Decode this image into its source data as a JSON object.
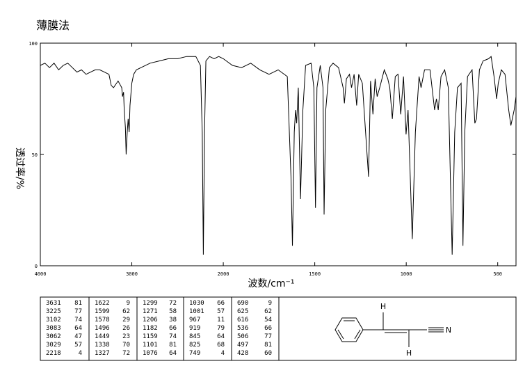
{
  "chart_data": {
    "type": "line",
    "title": "薄膜法",
    "x_label": "波数/cm⁻¹",
    "y_label": "透过率/%",
    "xlim": [
      4000,
      400
    ],
    "ylim": [
      0,
      100
    ],
    "xticks": [
      4000,
      3000,
      2000,
      1500,
      1000,
      500
    ],
    "yticks": [
      0,
      50,
      100
    ],
    "color": "#000000",
    "x": [
      4000,
      3950,
      3900,
      3850,
      3800,
      3750,
      3700,
      3650,
      3600,
      3550,
      3500,
      3450,
      3400,
      3350,
      3300,
      3250,
      3225,
      3200,
      3150,
      3110,
      3102,
      3090,
      3083,
      3070,
      3062,
      3050,
      3040,
      3029,
      3020,
      3000,
      2980,
      2950,
      2900,
      2800,
      2700,
      2600,
      2500,
      2400,
      2300,
      2250,
      2230,
      2218,
      2205,
      2190,
      2150,
      2100,
      2050,
      2000,
      1950,
      1900,
      1850,
      1800,
      1750,
      1700,
      1650,
      1630,
      1622,
      1612,
      1605,
      1599,
      1590,
      1578,
      1565,
      1550,
      1520,
      1505,
      1496,
      1488,
      1470,
      1455,
      1449,
      1440,
      1420,
      1400,
      1370,
      1345,
      1338,
      1327,
      1310,
      1299,
      1285,
      1271,
      1260,
      1240,
      1206,
      1195,
      1182,
      1170,
      1159,
      1145,
      1120,
      1101,
      1090,
      1076,
      1060,
      1045,
      1030,
      1015,
      1001,
      990,
      967,
      950,
      930,
      919,
      900,
      870,
      845,
      835,
      825,
      810,
      790,
      770,
      749,
      735,
      720,
      700,
      690,
      680,
      665,
      640,
      625,
      616,
      600,
      580,
      550,
      536,
      520,
      506,
      497,
      480,
      460,
      440,
      428,
      410,
      400
    ],
    "values": [
      90,
      91,
      89,
      91,
      88,
      90,
      91,
      89,
      87,
      88,
      86,
      87,
      88,
      88,
      87,
      86,
      81,
      80,
      83,
      80,
      76,
      78,
      70,
      62,
      50,
      60,
      66,
      60,
      72,
      82,
      86,
      88,
      89,
      91,
      92,
      93,
      93,
      94,
      94,
      90,
      60,
      5,
      60,
      92,
      94,
      93,
      94,
      93,
      90,
      89,
      91,
      88,
      86,
      88,
      85,
      40,
      9,
      60,
      70,
      64,
      80,
      30,
      70,
      90,
      91,
      80,
      26,
      80,
      90,
      80,
      23,
      70,
      89,
      91,
      89,
      80,
      73,
      84,
      86,
      80,
      86,
      72,
      86,
      82,
      40,
      83,
      68,
      84,
      76,
      80,
      88,
      84,
      80,
      66,
      85,
      86,
      68,
      85,
      59,
      70,
      12,
      60,
      85,
      80,
      88,
      88,
      70,
      75,
      70,
      85,
      88,
      80,
      5,
      60,
      80,
      82,
      9,
      60,
      85,
      88,
      64,
      66,
      88,
      92,
      93,
      94,
      85,
      75,
      82,
      88,
      86,
      70,
      63,
      70,
      76
    ]
  },
  "peak_table": {
    "groups": [
      [
        [
          3631,
          81
        ],
        [
          3225,
          77
        ],
        [
          3102,
          74
        ],
        [
          3083,
          64
        ],
        [
          3062,
          47
        ],
        [
          3029,
          57
        ],
        [
          2218,
          4
        ]
      ],
      [
        [
          1622,
          9
        ],
        [
          1599,
          62
        ],
        [
          1578,
          29
        ],
        [
          1496,
          26
        ],
        [
          1449,
          23
        ],
        [
          1338,
          70
        ],
        [
          1327,
          72
        ]
      ],
      [
        [
          1299,
          72
        ],
        [
          1271,
          58
        ],
        [
          1206,
          38
        ],
        [
          1182,
          66
        ],
        [
          1159,
          74
        ],
        [
          1101,
          81
        ],
        [
          1076,
          64
        ]
      ],
      [
        [
          1030,
          66
        ],
        [
          1001,
          57
        ],
        [
          967,
          11
        ],
        [
          919,
          79
        ],
        [
          845,
          64
        ],
        [
          825,
          68
        ],
        [
          749,
          4
        ]
      ],
      [
        [
          690,
          9
        ],
        [
          625,
          62
        ],
        [
          616,
          54
        ],
        [
          536,
          66
        ],
        [
          506,
          77
        ],
        [
          497,
          81
        ],
        [
          428,
          60
        ]
      ]
    ]
  },
  "structure": {
    "labels": [
      "H",
      "H",
      "N"
    ]
  }
}
